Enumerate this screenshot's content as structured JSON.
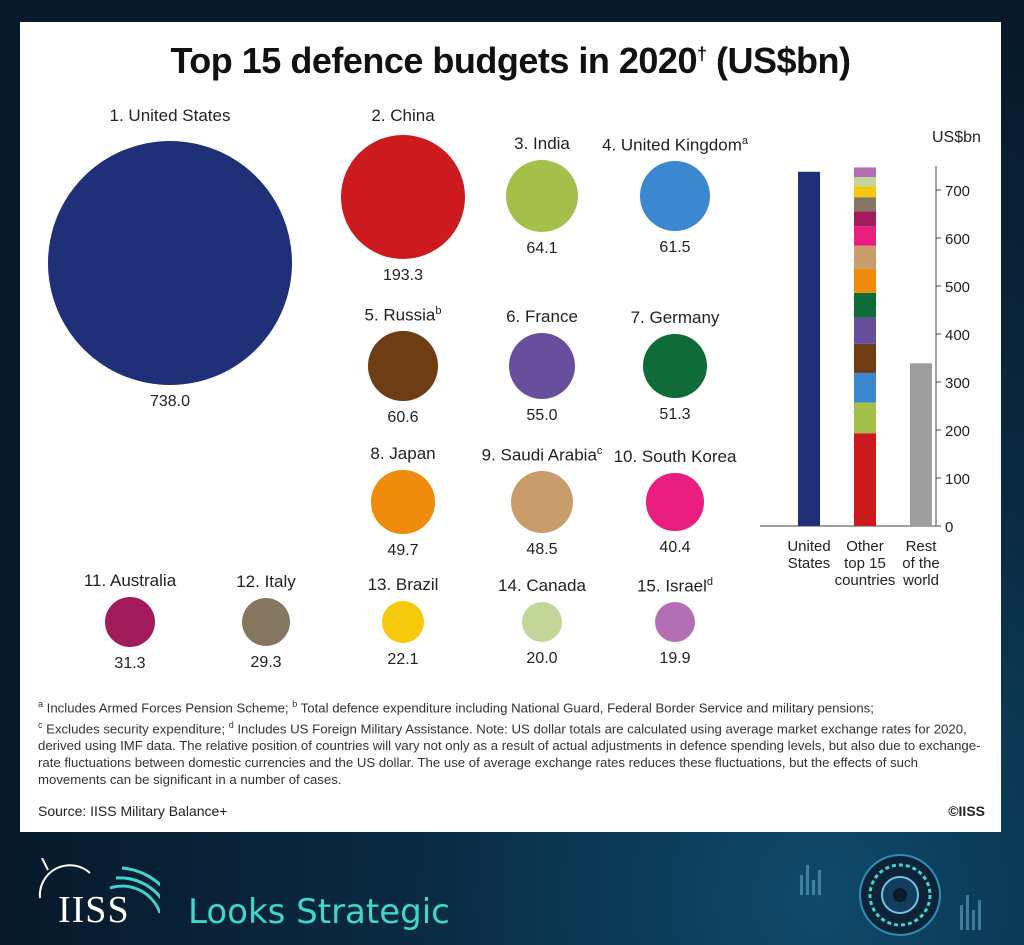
{
  "title": "Top 15 defence budgets in 2020",
  "title_mark": "†",
  "title_suffix": "(US$bn)",
  "chart_data": [
    {
      "type": "bubble",
      "title": "Top 15 defence budgets in 2020† (US$bn)",
      "points": [
        {
          "rank": "1.",
          "name": "United States",
          "note": "",
          "value": 738.0,
          "display": "738.0",
          "color": "#1f2f78"
        },
        {
          "rank": "2.",
          "name": "China",
          "note": "",
          "value": 193.3,
          "display": "193.3",
          "color": "#cc1a1f"
        },
        {
          "rank": "3.",
          "name": "India",
          "note": "",
          "value": 64.1,
          "display": "64.1",
          "color": "#a4c04a"
        },
        {
          "rank": "4.",
          "name": "United Kingdom",
          "note": "a",
          "value": 61.5,
          "display": "61.5",
          "color": "#3b88d0"
        },
        {
          "rank": "5.",
          "name": "Russia",
          "note": "b",
          "value": 60.6,
          "display": "60.6",
          "color": "#6e3d14"
        },
        {
          "rank": "6.",
          "name": "France",
          "note": "",
          "value": 55.0,
          "display": "55.0",
          "color": "#674f9e"
        },
        {
          "rank": "7.",
          "name": "Germany",
          "note": "",
          "value": 51.3,
          "display": "51.3",
          "color": "#0f6b37"
        },
        {
          "rank": "8.",
          "name": "Japan",
          "note": "",
          "value": 49.7,
          "display": "49.7",
          "color": "#ef8c0c"
        },
        {
          "rank": "9.",
          "name": "Saudi Arabia",
          "note": "c",
          "value": 48.5,
          "display": "48.5",
          "color": "#c99c6b"
        },
        {
          "rank": "10.",
          "name": "South Korea",
          "note": "",
          "value": 40.4,
          "display": "40.4",
          "color": "#e91e7f"
        },
        {
          "rank": "11.",
          "name": "Australia",
          "note": "",
          "value": 31.3,
          "display": "31.3",
          "color": "#a21c5b"
        },
        {
          "rank": "12.",
          "name": "Italy",
          "note": "",
          "value": 29.3,
          "display": "29.3",
          "color": "#85775f"
        },
        {
          "rank": "13.",
          "name": "Brazil",
          "note": "",
          "value": 22.1,
          "display": "22.1",
          "color": "#f7c90d"
        },
        {
          "rank": "14.",
          "name": "Canada",
          "note": "",
          "value": 20.0,
          "display": "20.0",
          "color": "#c2d69a"
        },
        {
          "rank": "15.",
          "name": "Israel",
          "note": "d",
          "value": 19.9,
          "display": "19.9",
          "color": "#b26fb3"
        }
      ]
    },
    {
      "type": "stacked-bar",
      "ylabel": "US$bn",
      "ylim": [
        0,
        750
      ],
      "yticks": [
        0,
        100,
        200,
        300,
        400,
        500,
        600,
        700
      ],
      "categories": [
        [
          "United",
          "States"
        ],
        [
          "Other",
          "top 15",
          "countries"
        ],
        [
          "Rest",
          "of the",
          "world"
        ]
      ],
      "united_states": {
        "value": 738.0,
        "color": "#1f2f78"
      },
      "other_top15_stack": [
        {
          "name": "China",
          "value": 193.3,
          "color": "#cc1a1f"
        },
        {
          "name": "India",
          "value": 64.1,
          "color": "#a4c04a"
        },
        {
          "name": "United Kingdom",
          "value": 61.5,
          "color": "#3b88d0"
        },
        {
          "name": "Russia",
          "value": 60.6,
          "color": "#6e3d14"
        },
        {
          "name": "France",
          "value": 55.0,
          "color": "#674f9e"
        },
        {
          "name": "Germany",
          "value": 51.3,
          "color": "#0f6b37"
        },
        {
          "name": "Japan",
          "value": 49.7,
          "color": "#ef8c0c"
        },
        {
          "name": "Saudi Arabia",
          "value": 48.5,
          "color": "#c99c6b"
        },
        {
          "name": "South Korea",
          "value": 40.4,
          "color": "#e91e7f"
        },
        {
          "name": "Australia",
          "value": 31.3,
          "color": "#a21c5b"
        },
        {
          "name": "Italy",
          "value": 29.3,
          "color": "#85775f"
        },
        {
          "name": "Brazil",
          "value": 22.1,
          "color": "#f7c90d"
        },
        {
          "name": "Canada",
          "value": 20.0,
          "color": "#c2d69a"
        },
        {
          "name": "Israel",
          "value": 19.9,
          "color": "#b26fb3"
        }
      ],
      "rest_of_world": {
        "value": 339,
        "color": "#9e9e9e"
      }
    }
  ],
  "notes": {
    "a_mark": "a",
    "a": " Includes Armed Forces Pension Scheme; ",
    "b_mark": "b",
    "b": " Total defence expenditure including National Guard, Federal Border Service and military pensions;",
    "c_mark": "c",
    "c": " Excludes security expenditure; ",
    "d_mark": "d",
    "d": " Includes US Foreign Military Assistance. Note: US dollar totals are calculated using average market exchange rates for 2020, derived using IMF data. The relative position of countries will vary not only as a result of actual adjustments in defence spending levels, but also due to exchange-rate fluctuations between domestic currencies and the US dollar. The use of average exchange rates reduces these fluctuations, but the effects of such movements can be significant in a number of cases."
  },
  "source": "Source: IISS Military Balance+",
  "copyright": "©IISS",
  "brand": {
    "name": "IISS",
    "tagline": "Looks Strategic"
  }
}
